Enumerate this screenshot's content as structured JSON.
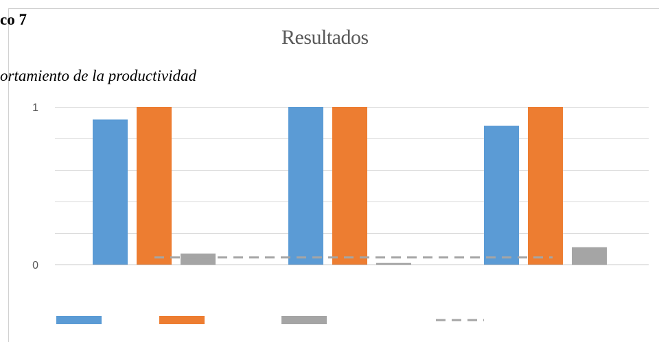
{
  "document": {
    "heading": "co 7",
    "caption": "ortamiento de la productividad"
  },
  "chart_data": {
    "type": "bar",
    "title": "Resultados",
    "xlabel": "",
    "ylabel": "",
    "ylim": [
      0,
      1
    ],
    "y_tick_labels": [
      "0",
      "1"
    ],
    "grid": true,
    "legend": "bottom",
    "categories": [
      "",
      "",
      ""
    ],
    "series": [
      {
        "color": "#5B9BD5",
        "values": [
          0.92,
          1.0,
          0.88
        ]
      },
      {
        "color": "#ED7D31",
        "values": [
          1.0,
          1.0,
          1.0
        ]
      },
      {
        "color": "#A5A5A5",
        "values": [
          0.07,
          0.01,
          0.11
        ]
      }
    ],
    "reference_line": {
      "style": "dashed",
      "color": "#A5A5A5",
      "value": 0.045
    }
  }
}
